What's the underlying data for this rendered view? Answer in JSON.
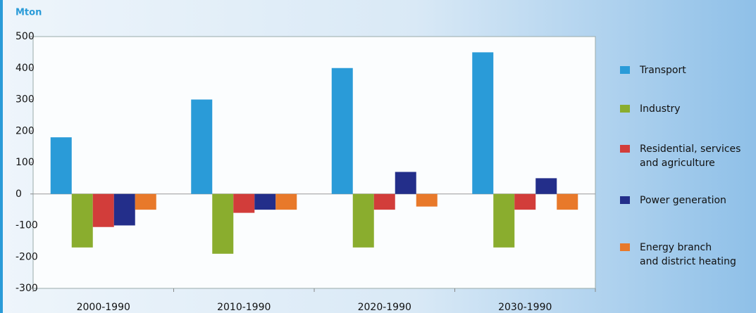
{
  "chart_data": {
    "type": "bar",
    "title": "Mton",
    "categories": [
      "2000-1990",
      "2010-1990",
      "2020-1990",
      "2030-1990"
    ],
    "series": [
      {
        "name": "Transport",
        "color": "#2a9bd8",
        "values": [
          180,
          300,
          400,
          450
        ]
      },
      {
        "name": "Industry",
        "color": "#8aad2e",
        "values": [
          -170,
          -190,
          -170,
          -170
        ]
      },
      {
        "name": "Residential, services\nand agriculture",
        "color": "#d23d3a",
        "values": [
          -105,
          -60,
          -50,
          -50
        ]
      },
      {
        "name": "Power generation",
        "color": "#232e8a",
        "values": [
          -100,
          -50,
          70,
          50
        ]
      },
      {
        "name": "Energy branch\nand district heating",
        "color": "#e8792a",
        "values": [
          -50,
          -50,
          -40,
          -50
        ]
      }
    ],
    "ylim": [
      -300,
      500
    ],
    "yticks": [
      -300,
      -200,
      -100,
      0,
      100,
      200,
      300,
      400,
      500
    ],
    "grid": false
  }
}
